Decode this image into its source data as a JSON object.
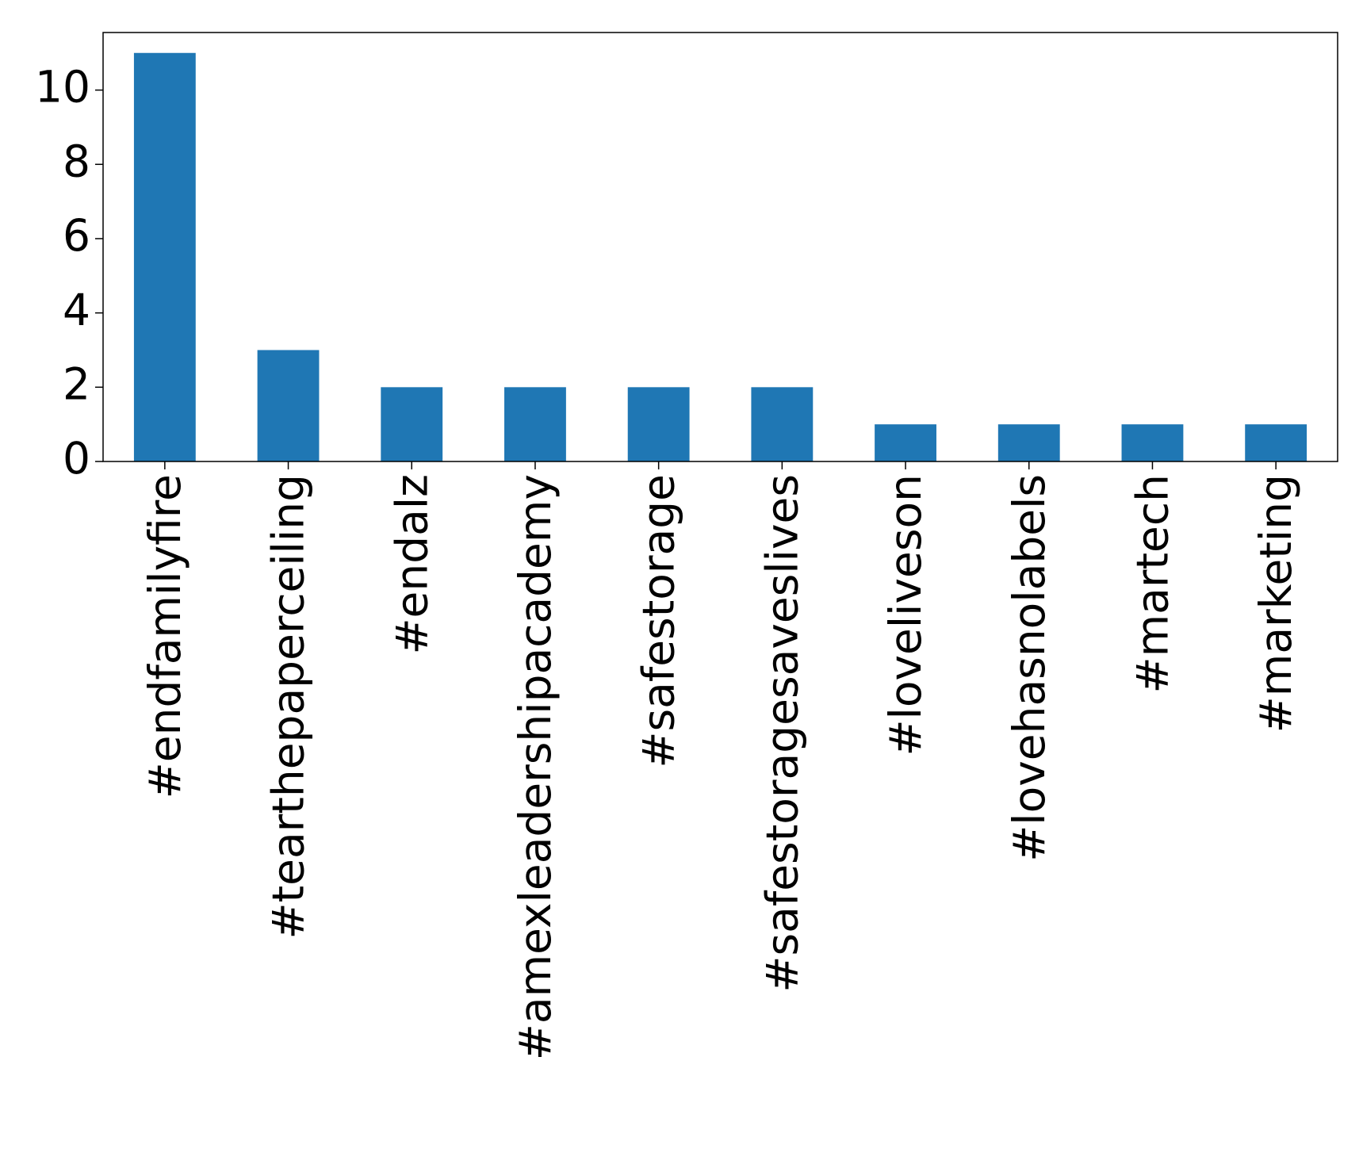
{
  "chart_data": {
    "type": "bar",
    "categories": [
      "#endfamilyfire",
      "#tearthepaperceiling",
      "#endalz",
      "#amexleadershipacademy",
      "#safestorage",
      "#safestoragesaveslives",
      "#loveliveson",
      "#lovehasnolabels",
      "#martech",
      "#marketing"
    ],
    "values": [
      11,
      3,
      2,
      2,
      2,
      2,
      1,
      1,
      1,
      1
    ],
    "color": "#1f77b4",
    "ylim": [
      0,
      11.55
    ],
    "yticks": [
      0,
      2,
      4,
      6,
      8,
      10
    ],
    "grid": false
  }
}
